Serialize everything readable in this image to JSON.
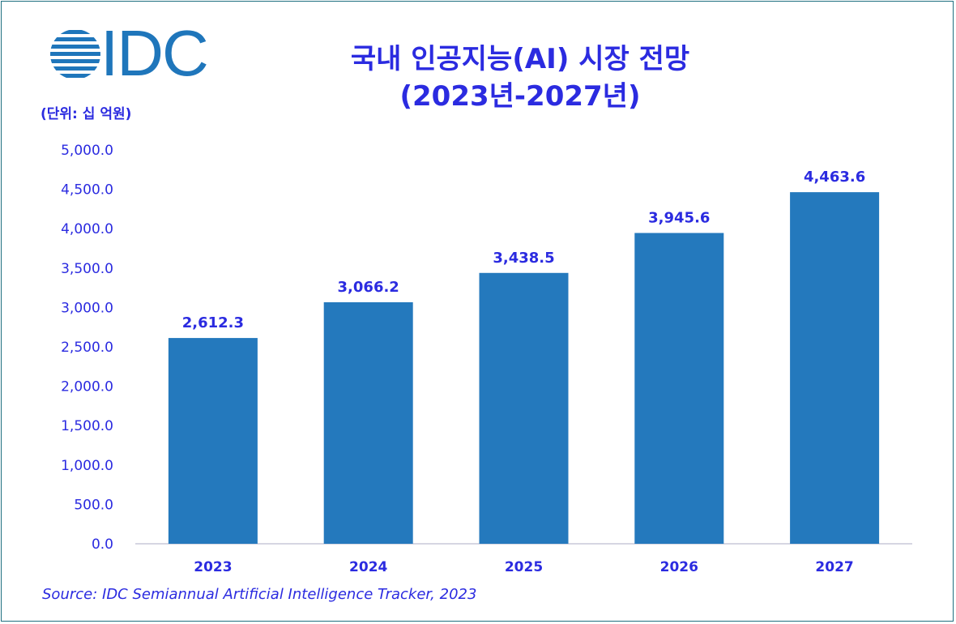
{
  "logo": {
    "text": "IDC",
    "color": "#1f76bb"
  },
  "title_line1": "국내 인공지능(AI) 시장 전망",
  "title_line2": "(2023년-2027년)",
  "unit_label": "(단위: 십 억원)",
  "source": "Source: IDC Semiannual Artificial Intelligence Tracker, 2023",
  "colors": {
    "bar": "#2479bd",
    "text": "#2b2be0",
    "axis": "#c8c8d8"
  },
  "chart_data": {
    "type": "bar",
    "categories": [
      "2023",
      "2024",
      "2025",
      "2026",
      "2027"
    ],
    "values": [
      2612.3,
      3066.2,
      3438.5,
      3945.6,
      4463.6
    ],
    "value_labels": [
      "2,612.3",
      "3,066.2",
      "3,438.5",
      "3,945.6",
      "4,463.6"
    ],
    "ylim": [
      0,
      5000
    ],
    "yticks": [
      0,
      500,
      1000,
      1500,
      2000,
      2500,
      3000,
      3500,
      4000,
      4500,
      5000
    ],
    "ytick_labels": [
      "0.0",
      "500.0",
      "1,000.0",
      "1,500.0",
      "2,000.0",
      "2,500.0",
      "3,000.0",
      "3,500.0",
      "4,000.0",
      "4,500.0",
      "5,000.0"
    ],
    "grid": false,
    "legend": "none"
  }
}
